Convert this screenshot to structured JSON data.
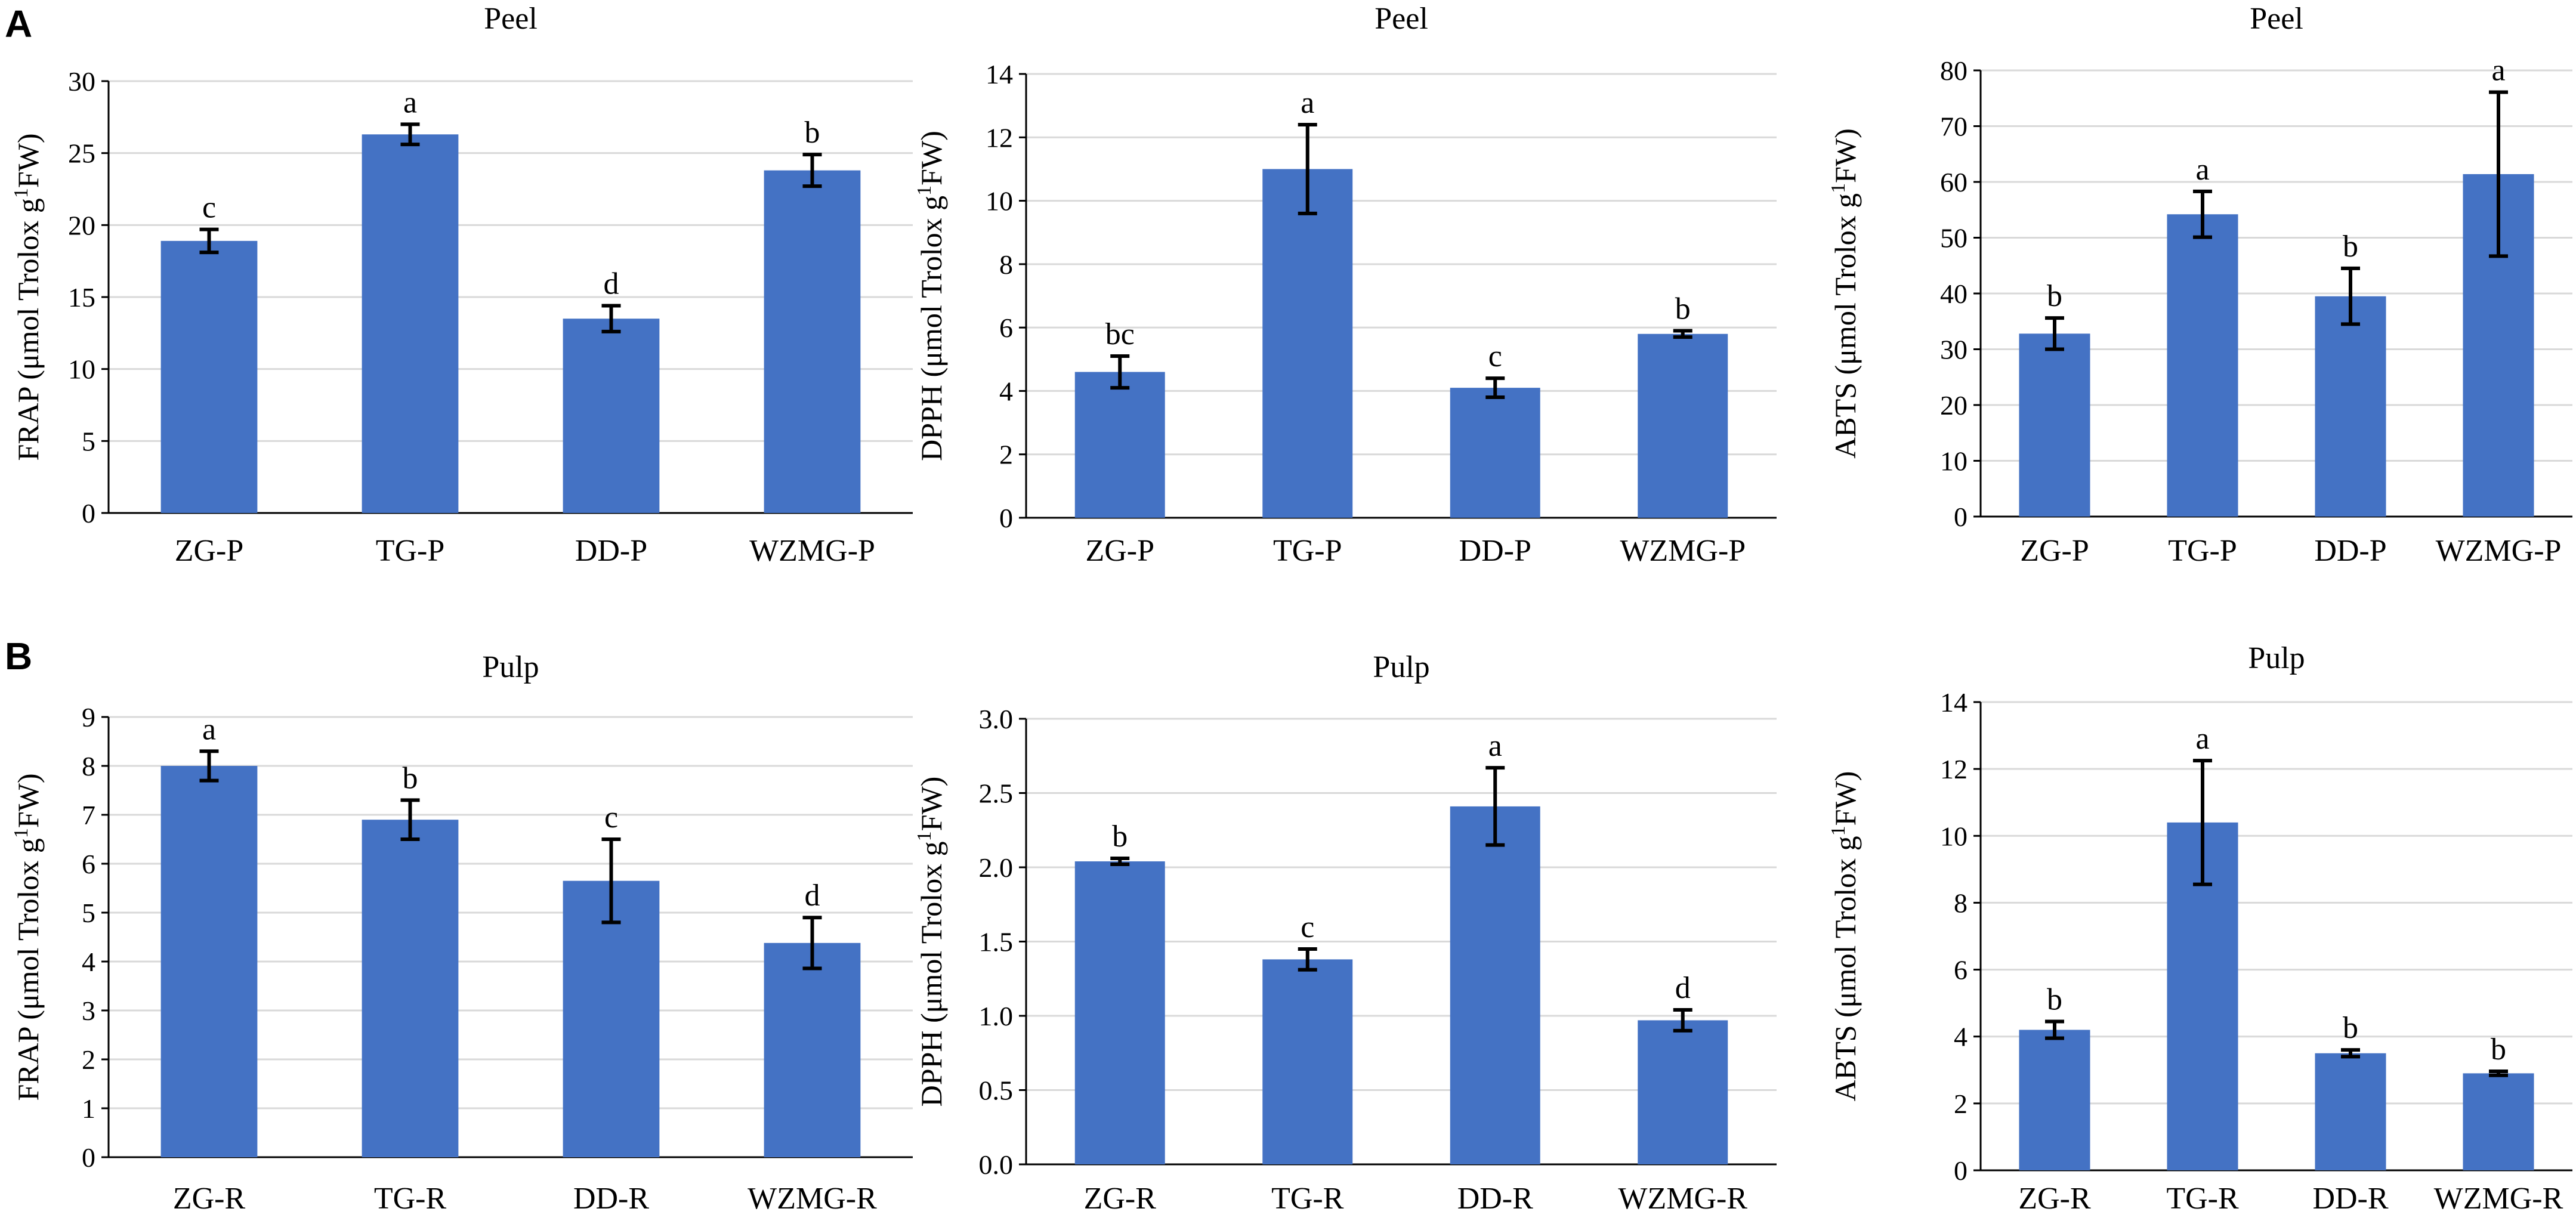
{
  "panel_labels": [
    "A",
    "B"
  ],
  "colors": {
    "bar": "#4472c4",
    "grid": "#d9d9d9",
    "axis": "#000000",
    "error": "#000000"
  },
  "chart_data": [
    {
      "type": "bar",
      "panel": "A",
      "title": "Peel",
      "ylabel_main": "FRAP (μmol Trolox g",
      "ylabel_sup": "1",
      "ylabel_end": "FW)",
      "ylim": [
        0,
        30
      ],
      "yticks": [
        "0",
        "5",
        "10",
        "15",
        "20",
        "25",
        "30"
      ],
      "categories": [
        "ZG-P",
        "TG-P",
        "DD-P",
        "WZMG-P"
      ],
      "values": [
        18.9,
        26.3,
        13.5,
        23.8
      ],
      "errors": [
        0.8,
        0.7,
        0.9,
        1.1
      ],
      "significance": [
        "c",
        "a",
        "d",
        "b"
      ]
    },
    {
      "type": "bar",
      "panel": "A",
      "title": "Peel",
      "ylabel_main": "DPPH (μmol Trolox g",
      "ylabel_sup": "1",
      "ylabel_end": "FW)",
      "ylim": [
        0,
        14
      ],
      "yticks": [
        "0",
        "2",
        "4",
        "6",
        "8",
        "10",
        "12",
        "14"
      ],
      "categories": [
        "ZG-P",
        "TG-P",
        "DD-P",
        "WZMG-P"
      ],
      "values": [
        4.6,
        11.0,
        4.1,
        5.8
      ],
      "errors": [
        0.5,
        1.4,
        0.3,
        0.1
      ],
      "significance": [
        "bc",
        "a",
        "c",
        "b"
      ]
    },
    {
      "type": "bar",
      "panel": "A",
      "title": "Peel",
      "ylabel_main": "ABTS (μmol Trolox g",
      "ylabel_sup": "1",
      "ylabel_end": "FW)",
      "ylim": [
        0,
        80
      ],
      "yticks": [
        "0",
        "10",
        "20",
        "30",
        "40",
        "50",
        "60",
        "70",
        "80"
      ],
      "categories": [
        "ZG-P",
        "TG-P",
        "DD-P",
        "WZMG-P"
      ],
      "values": [
        32.8,
        54.2,
        39.5,
        61.4
      ],
      "errors": [
        2.8,
        4.1,
        5.0,
        14.7
      ],
      "significance": [
        "b",
        "a",
        "b",
        "a"
      ]
    },
    {
      "type": "bar",
      "panel": "B",
      "title": "Pulp",
      "ylabel_main": "FRAP (μmol Trolox g",
      "ylabel_sup": "1",
      "ylabel_end": "FW)",
      "ylim": [
        0,
        9
      ],
      "yticks": [
        "0",
        "1",
        "2",
        "3",
        "4",
        "5",
        "6",
        "7",
        "8",
        "9"
      ],
      "categories": [
        "ZG-R",
        "TG-R",
        "DD-R",
        "WZMG-R"
      ],
      "values": [
        8.0,
        6.9,
        5.65,
        4.38
      ],
      "errors": [
        0.3,
        0.4,
        0.85,
        0.52
      ],
      "significance": [
        "a",
        "b",
        "c",
        "d"
      ]
    },
    {
      "type": "bar",
      "panel": "B",
      "title": "Pulp",
      "ylabel_main": "DPPH (μmol Trolox g",
      "ylabel_sup": "1",
      "ylabel_end": "FW)",
      "ylim": [
        0,
        3.0
      ],
      "yticks": [
        "0.0",
        "0.5",
        "1.0",
        "1.5",
        "2.0",
        "2.5",
        "3.0"
      ],
      "categories": [
        "ZG-R",
        "TG-R",
        "DD-R",
        "WZMG-R"
      ],
      "values": [
        2.04,
        1.38,
        2.41,
        0.97
      ],
      "errors": [
        0.02,
        0.07,
        0.26,
        0.07
      ],
      "significance": [
        "b",
        "c",
        "a",
        "d"
      ]
    },
    {
      "type": "bar",
      "panel": "B",
      "title": "Pulp",
      "ylabel_main": "ABTS (μmol Trolox g",
      "ylabel_sup": "1",
      "ylabel_end": "FW)",
      "ylim": [
        0,
        14
      ],
      "yticks": [
        "0",
        "2",
        "4",
        "6",
        "8",
        "10",
        "12",
        "14"
      ],
      "categories": [
        "ZG-R",
        "TG-R",
        "DD-R",
        "WZMG-R"
      ],
      "values": [
        4.2,
        10.4,
        3.5,
        2.9
      ],
      "errors": [
        0.25,
        1.85,
        0.1,
        0.06
      ],
      "significance": [
        "b",
        "a",
        "b",
        "b"
      ]
    }
  ]
}
